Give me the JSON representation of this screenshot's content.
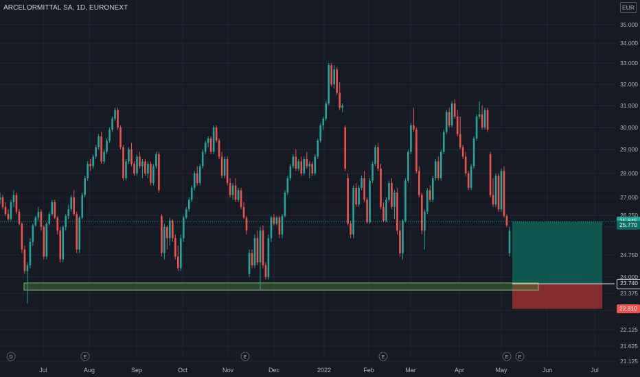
{
  "header": {
    "symbol_title": "ARCELORMITTAL SA, 1D, EURONEXT",
    "currency": "EUR"
  },
  "colors": {
    "background": "#161a25",
    "grid": "#232733",
    "up": "#26a69a",
    "down": "#ef5350",
    "profit_zone": "#0f5b52",
    "loss_zone": "#8a2d2d",
    "support_zone": "#4a7a3a",
    "text": "#b2b5be"
  },
  "chart_data": {
    "type": "candlestick",
    "y_axis": {
      "min": 21.125,
      "max": 35.5,
      "tick_labels": [
        "35.000",
        "34.000",
        "33.000",
        "32.000",
        "31.000",
        "30.000",
        "29.000",
        "28.000",
        "27.000",
        "26.250",
        "25.500",
        "24.750",
        "24.000",
        "23.375",
        "22.750",
        "22.125",
        "21.625",
        "21.125"
      ]
    },
    "x_axis": {
      "tick_labels": [
        "Jul",
        "Aug",
        "Sep",
        "Oct",
        "Nov",
        "Dec",
        "2022",
        "Feb",
        "Mar",
        "Apr",
        "May",
        "Jun",
        "Jul"
      ]
    },
    "candles": [
      [
        26.9,
        27.2,
        26.7,
        27.0
      ],
      [
        27.0,
        27.1,
        26.5,
        26.6
      ],
      [
        26.6,
        26.8,
        26.2,
        26.3
      ],
      [
        26.3,
        26.5,
        25.9,
        26.0
      ],
      [
        26.0,
        26.9,
        25.9,
        26.8
      ],
      [
        26.8,
        27.3,
        26.6,
        27.1
      ],
      [
        27.1,
        27.2,
        26.3,
        26.4
      ],
      [
        26.4,
        26.5,
        25.6,
        25.7
      ],
      [
        25.7,
        25.8,
        24.8,
        24.9
      ],
      [
        24.9,
        25.0,
        24.1,
        24.2
      ],
      [
        24.2,
        24.5,
        23.0,
        24.4
      ],
      [
        24.4,
        25.2,
        24.3,
        25.1
      ],
      [
        25.1,
        25.7,
        25.0,
        25.6
      ],
      [
        25.6,
        26.2,
        25.5,
        26.1
      ],
      [
        26.1,
        26.6,
        25.9,
        26.4
      ],
      [
        26.4,
        26.5,
        25.4,
        25.5
      ],
      [
        25.5,
        25.6,
        24.6,
        24.7
      ],
      [
        24.7,
        25.8,
        24.6,
        25.7
      ],
      [
        25.7,
        26.4,
        25.6,
        26.3
      ],
      [
        26.3,
        26.9,
        26.2,
        26.8
      ],
      [
        26.8,
        26.9,
        26.0,
        26.1
      ],
      [
        26.1,
        26.2,
        25.3,
        25.4
      ],
      [
        25.4,
        25.5,
        24.5,
        24.6
      ],
      [
        24.6,
        25.6,
        24.5,
        25.5
      ],
      [
        25.5,
        26.3,
        25.4,
        26.2
      ],
      [
        26.2,
        26.7,
        26.0,
        26.5
      ],
      [
        26.5,
        27.1,
        26.4,
        27.0
      ],
      [
        27.0,
        27.3,
        26.2,
        26.3
      ],
      [
        26.3,
        26.4,
        24.8,
        24.9
      ],
      [
        24.9,
        26.2,
        24.8,
        26.1
      ],
      [
        26.1,
        27.2,
        26.0,
        27.1
      ],
      [
        27.1,
        27.9,
        27.0,
        27.8
      ],
      [
        27.8,
        28.5,
        27.7,
        28.4
      ],
      [
        28.4,
        28.6,
        28.1,
        28.3
      ],
      [
        28.3,
        28.8,
        28.2,
        28.7
      ],
      [
        28.7,
        29.2,
        28.6,
        29.1
      ],
      [
        29.1,
        29.7,
        29.0,
        29.6
      ],
      [
        29.6,
        29.8,
        28.4,
        28.5
      ],
      [
        28.5,
        29.0,
        28.4,
        28.9
      ],
      [
        28.9,
        29.5,
        28.8,
        29.4
      ],
      [
        29.4,
        30.0,
        29.3,
        29.9
      ],
      [
        29.9,
        30.5,
        29.8,
        30.4
      ],
      [
        30.4,
        30.9,
        30.3,
        30.8
      ],
      [
        30.8,
        30.9,
        29.9,
        30.0
      ],
      [
        30.0,
        30.1,
        29.0,
        29.1
      ],
      [
        29.1,
        29.2,
        27.7,
        27.8
      ],
      [
        27.8,
        28.6,
        27.7,
        28.5
      ],
      [
        28.5,
        29.1,
        28.4,
        29.0
      ],
      [
        29.0,
        29.3,
        28.3,
        28.4
      ],
      [
        28.4,
        28.5,
        27.9,
        28.0
      ],
      [
        28.0,
        28.8,
        27.9,
        28.7
      ],
      [
        28.7,
        28.9,
        28.2,
        28.3
      ],
      [
        28.3,
        28.6,
        27.8,
        28.5
      ],
      [
        28.5,
        28.6,
        27.9,
        28.0
      ],
      [
        28.0,
        28.5,
        27.8,
        28.4
      ],
      [
        28.4,
        28.5,
        27.5,
        27.6
      ],
      [
        27.6,
        28.4,
        27.5,
        28.3
      ],
      [
        28.3,
        28.9,
        28.2,
        28.8
      ],
      [
        28.8,
        28.9,
        27.2,
        27.3
      ],
      [
        26.2,
        26.3,
        24.7,
        24.8
      ],
      [
        24.8,
        25.7,
        24.6,
        25.5
      ],
      [
        25.5,
        25.6,
        24.9,
        25.2
      ],
      [
        25.2,
        26.1,
        25.0,
        25.9
      ],
      [
        25.9,
        26.0,
        25.1,
        25.2
      ],
      [
        25.2,
        25.3,
        24.6,
        24.7
      ],
      [
        24.7,
        25.0,
        24.2,
        24.3
      ],
      [
        24.3,
        25.3,
        24.2,
        25.2
      ],
      [
        25.2,
        26.2,
        25.1,
        26.1
      ],
      [
        26.1,
        26.6,
        26.0,
        26.5
      ],
      [
        26.5,
        27.0,
        26.4,
        26.9
      ],
      [
        26.9,
        27.5,
        26.8,
        27.4
      ],
      [
        27.4,
        28.1,
        27.3,
        28.0
      ],
      [
        28.0,
        28.3,
        27.5,
        27.6
      ],
      [
        27.6,
        28.4,
        27.5,
        28.3
      ],
      [
        28.3,
        29.0,
        28.2,
        28.9
      ],
      [
        28.9,
        29.4,
        28.8,
        29.3
      ],
      [
        29.3,
        29.6,
        29.1,
        29.5
      ],
      [
        29.5,
        29.6,
        28.8,
        28.9
      ],
      [
        28.9,
        30.1,
        28.8,
        30.0
      ],
      [
        30.0,
        30.1,
        29.3,
        29.4
      ],
      [
        29.4,
        29.5,
        28.6,
        28.7
      ],
      [
        28.7,
        28.9,
        27.8,
        27.9
      ],
      [
        27.9,
        28.7,
        27.8,
        28.6
      ],
      [
        28.6,
        28.7,
        27.5,
        27.6
      ],
      [
        27.6,
        27.8,
        27.0,
        27.1
      ],
      [
        27.1,
        27.6,
        26.9,
        27.5
      ],
      [
        27.5,
        27.8,
        26.8,
        26.9
      ],
      [
        26.9,
        27.4,
        26.8,
        27.3
      ],
      [
        27.3,
        27.4,
        26.5,
        26.6
      ],
      [
        26.6,
        26.8,
        26.0,
        26.1
      ],
      [
        26.1,
        26.2,
        25.3,
        25.4
      ],
      [
        24.1,
        24.9,
        24.0,
        24.8
      ],
      [
        24.8,
        24.9,
        24.3,
        24.4
      ],
      [
        24.4,
        25.3,
        24.3,
        25.2
      ],
      [
        25.2,
        25.4,
        24.4,
        24.5
      ],
      [
        24.5,
        25.5,
        23.5,
        25.4
      ],
      [
        25.4,
        25.6,
        24.3,
        24.4
      ],
      [
        24.4,
        24.5,
        23.9,
        24.0
      ],
      [
        24.0,
        25.3,
        23.9,
        25.2
      ],
      [
        25.2,
        26.2,
        25.1,
        26.1
      ],
      [
        26.1,
        26.3,
        25.6,
        25.7
      ],
      [
        25.7,
        26.2,
        25.6,
        26.1
      ],
      [
        26.1,
        26.2,
        25.2,
        25.3
      ],
      [
        25.3,
        26.3,
        25.2,
        26.2
      ],
      [
        26.2,
        27.3,
        26.1,
        27.2
      ],
      [
        27.2,
        27.9,
        27.1,
        27.8
      ],
      [
        27.8,
        28.4,
        27.7,
        28.3
      ],
      [
        28.3,
        28.8,
        28.2,
        28.7
      ],
      [
        28.7,
        29.0,
        28.1,
        28.2
      ],
      [
        28.2,
        28.6,
        28.1,
        28.5
      ],
      [
        28.5,
        28.7,
        27.9,
        28.0
      ],
      [
        28.0,
        28.7,
        27.9,
        28.6
      ],
      [
        28.6,
        28.9,
        28.2,
        28.3
      ],
      [
        28.3,
        28.5,
        27.8,
        28.4
      ],
      [
        28.4,
        28.5,
        27.9,
        28.0
      ],
      [
        28.0,
        28.8,
        27.9,
        28.7
      ],
      [
        28.7,
        29.5,
        28.6,
        29.4
      ],
      [
        29.4,
        30.2,
        29.3,
        30.1
      ],
      [
        30.1,
        30.5,
        29.9,
        30.4
      ],
      [
        30.4,
        31.2,
        30.3,
        31.1
      ],
      [
        31.1,
        33.0,
        31.0,
        32.9
      ],
      [
        32.9,
        33.0,
        31.9,
        32.0
      ],
      [
        32.0,
        32.9,
        31.8,
        32.7
      ],
      [
        32.7,
        32.8,
        31.5,
        31.6
      ],
      [
        31.6,
        32.1,
        30.8,
        30.9
      ],
      [
        30.9,
        31.1,
        30.7,
        31.0
      ],
      [
        30.0,
        30.1,
        28.1,
        28.2
      ],
      [
        27.8,
        28.0,
        25.6,
        25.7
      ],
      [
        25.7,
        25.9,
        25.2,
        25.3
      ],
      [
        25.3,
        27.5,
        25.2,
        27.4
      ],
      [
        27.4,
        27.6,
        26.6,
        26.7
      ],
      [
        26.7,
        27.5,
        26.6,
        27.4
      ],
      [
        27.4,
        27.9,
        27.3,
        27.8
      ],
      [
        27.8,
        28.1,
        26.8,
        26.9
      ],
      [
        26.9,
        27.0,
        25.7,
        25.8
      ],
      [
        25.8,
        27.8,
        25.7,
        27.7
      ],
      [
        27.7,
        28.5,
        27.6,
        28.4
      ],
      [
        28.4,
        29.2,
        28.3,
        29.1
      ],
      [
        29.1,
        29.3,
        28.1,
        28.2
      ],
      [
        28.2,
        28.4,
        26.5,
        26.6
      ],
      [
        26.6,
        26.8,
        25.8,
        25.9
      ],
      [
        25.9,
        27.0,
        25.8,
        26.9
      ],
      [
        26.9,
        27.7,
        26.8,
        27.6
      ],
      [
        27.6,
        27.8,
        26.5,
        26.6
      ],
      [
        26.6,
        27.3,
        26.0,
        27.2
      ],
      [
        27.2,
        27.4,
        25.3,
        25.4
      ],
      [
        25.4,
        25.9,
        24.7,
        24.8
      ],
      [
        24.8,
        26.0,
        24.6,
        25.9
      ],
      [
        25.9,
        27.8,
        25.8,
        27.7
      ],
      [
        27.7,
        29.0,
        27.6,
        28.9
      ],
      [
        28.9,
        30.2,
        28.8,
        30.1
      ],
      [
        30.1,
        30.9,
        29.8,
        29.9
      ],
      [
        29.9,
        30.0,
        28.0,
        28.1
      ],
      [
        28.1,
        28.3,
        27.0,
        27.1
      ],
      [
        27.1,
        27.2,
        25.3,
        25.4
      ],
      [
        25.4,
        26.5,
        24.9,
        26.4
      ],
      [
        26.4,
        27.4,
        26.3,
        27.3
      ],
      [
        27.3,
        27.5,
        26.8,
        26.9
      ],
      [
        26.9,
        27.9,
        26.8,
        27.8
      ],
      [
        27.8,
        28.6,
        27.7,
        28.5
      ],
      [
        28.5,
        28.7,
        27.7,
        27.8
      ],
      [
        27.8,
        29.0,
        27.7,
        28.9
      ],
      [
        28.9,
        29.9,
        28.8,
        29.8
      ],
      [
        29.8,
        30.8,
        29.7,
        30.7
      ],
      [
        30.7,
        30.9,
        30.0,
        30.1
      ],
      [
        30.1,
        31.2,
        30.0,
        31.1
      ],
      [
        31.1,
        31.3,
        30.4,
        30.5
      ],
      [
        30.5,
        30.8,
        29.6,
        29.7
      ],
      [
        29.7,
        30.5,
        29.0,
        29.1
      ],
      [
        29.1,
        29.2,
        28.6,
        28.7
      ],
      [
        28.7,
        28.9,
        27.9,
        28.0
      ],
      [
        28.0,
        28.1,
        27.3,
        27.4
      ],
      [
        27.4,
        28.4,
        27.3,
        28.3
      ],
      [
        28.3,
        29.6,
        28.2,
        29.5
      ],
      [
        29.5,
        30.6,
        29.4,
        30.5
      ],
      [
        30.5,
        31.2,
        30.4,
        30.6
      ],
      [
        30.6,
        31.0,
        29.9,
        30.0
      ],
      [
        30.0,
        30.9,
        29.9,
        30.8
      ],
      [
        30.8,
        30.9,
        29.8,
        29.9
      ],
      [
        28.8,
        28.9,
        27.0,
        27.1
      ],
      [
        27.1,
        27.8,
        26.6,
        26.7
      ],
      [
        26.7,
        28.0,
        26.6,
        27.9
      ],
      [
        27.9,
        28.0,
        26.4,
        26.5
      ],
      [
        26.5,
        28.2,
        26.4,
        28.1
      ],
      [
        28.1,
        28.3,
        26.1,
        26.2
      ],
      [
        26.2,
        26.3,
        25.5,
        25.6
      ],
      [
        24.8,
        25.5,
        24.7,
        25.4
      ]
    ],
    "price_labels": [
      {
        "value": 25.845,
        "text": "25.845",
        "role": "current"
      },
      {
        "value": 25.77,
        "text": "25.770",
        "role": "entry"
      },
      {
        "value": 23.74,
        "text": "23.740",
        "role": "level"
      },
      {
        "value": 22.81,
        "text": "22.810",
        "role": "stop"
      }
    ],
    "zones": [
      {
        "kind": "profit",
        "from": 25.83,
        "to": 23.74
      },
      {
        "kind": "loss",
        "from": 23.74,
        "to": 22.81
      },
      {
        "kind": "support",
        "from": 23.77,
        "to": 23.5
      }
    ],
    "event_markers": [
      "D",
      "E",
      "E",
      "E",
      "E",
      "E",
      "D"
    ]
  }
}
